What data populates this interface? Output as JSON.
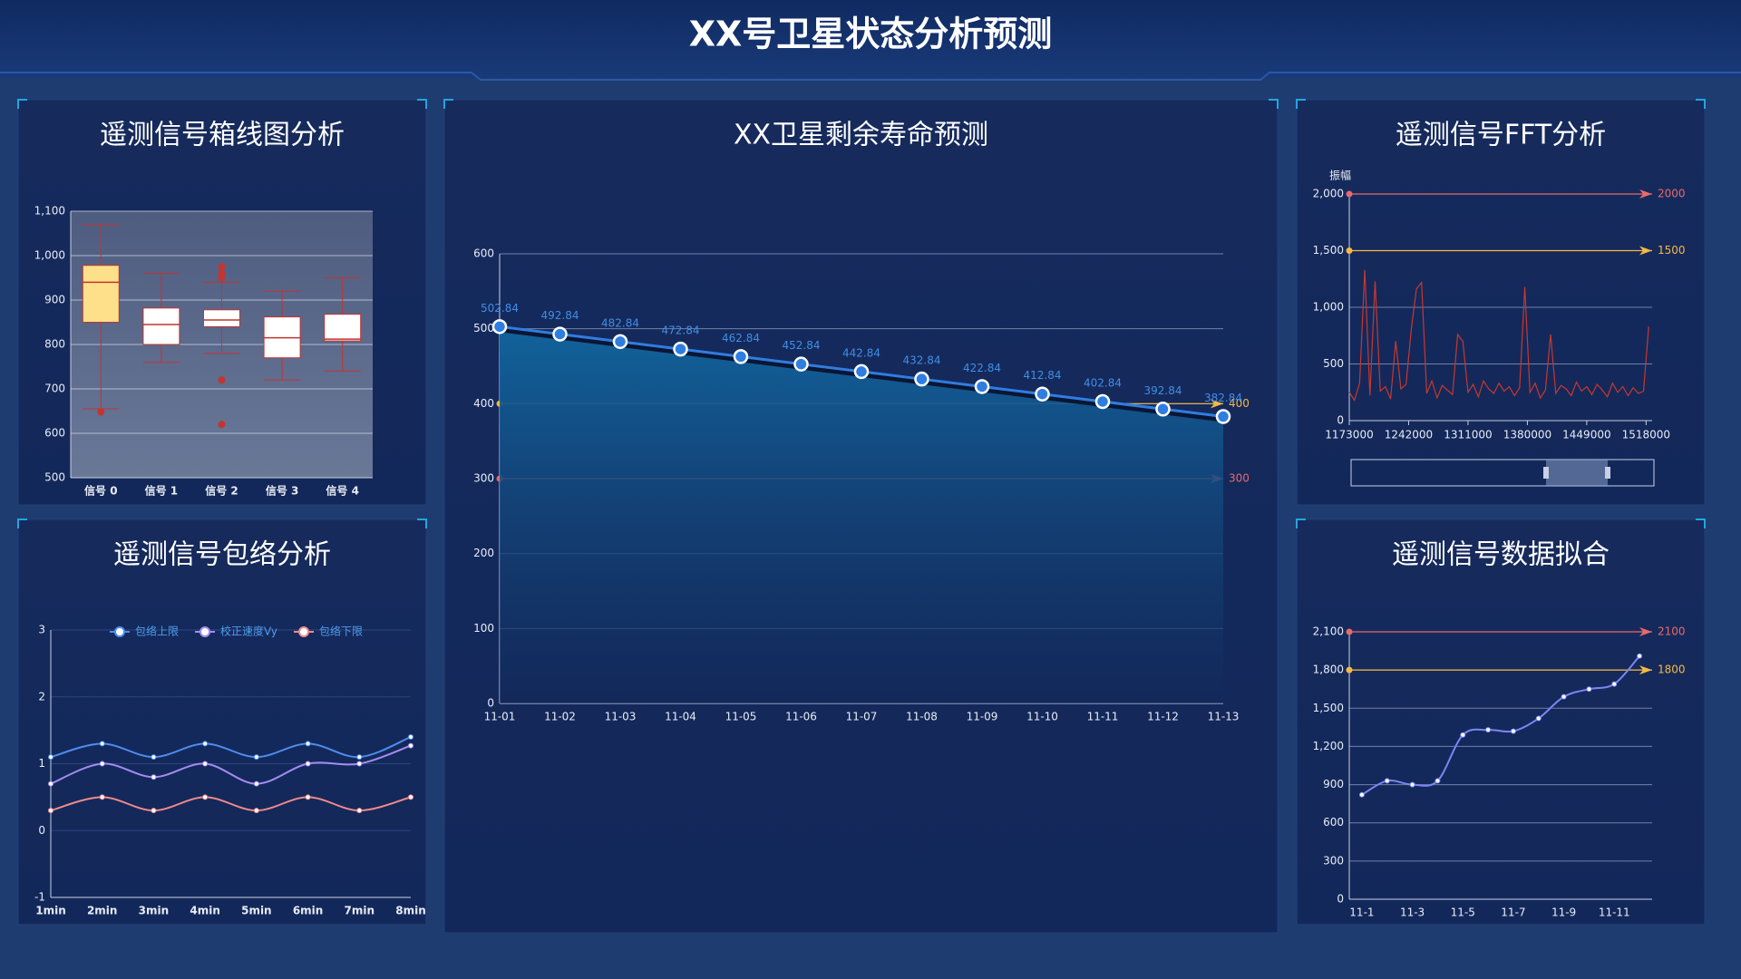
{
  "title": "XX号卫星状态分析预测",
  "chart_data": [
    {
      "type": "boxplot",
      "title": "遥测信号箱线图分析",
      "categories": [
        "信号 0",
        "信号 1",
        "信号 2",
        "信号 3",
        "信号 4"
      ],
      "values": [
        [
          655,
          850,
          940,
          978,
          1070
        ],
        [
          760,
          800,
          845,
          882,
          960
        ],
        [
          780,
          840,
          855,
          878,
          940
        ],
        [
          720,
          770,
          815,
          862,
          920
        ],
        [
          740,
          808,
          812,
          868,
          950
        ]
      ],
      "outliers": [
        [
          648
        ],
        [],
        [
          975,
          960,
          950,
          720,
          620
        ],
        [],
        []
      ],
      "box_colors": [
        "#ffe08a",
        "#ffffff",
        "#ffffff",
        "#ffffff",
        "#ffffff"
      ],
      "color": "#c23531",
      "ylim": [
        500,
        1100
      ],
      "yticks": [
        500,
        600,
        700,
        800,
        900,
        {
          "value": 1000,
          "label": "1,000"
        },
        {
          "value": 1100,
          "label": "1,100"
        }
      ],
      "grid": true
    },
    {
      "type": "line",
      "title": "遥测信号包络分析",
      "categories": [
        "1min",
        "2min",
        "3min",
        "4min",
        "5min",
        "6min",
        "7min",
        "8min"
      ],
      "series": [
        {
          "name": "包络上限",
          "color": "#4d8ef0",
          "values": [
            1.1,
            1.3,
            1.1,
            1.3,
            1.1,
            1.3,
            1.1,
            1.4
          ]
        },
        {
          "name": "校正速度Vy",
          "color": "#a48cf0",
          "values": [
            0.7,
            1.0,
            0.8,
            1.0,
            0.7,
            1.0,
            1.0,
            1.27
          ]
        },
        {
          "name": "包络下限",
          "color": "#f08a8a",
          "values": [
            0.3,
            0.5,
            0.3,
            0.5,
            0.3,
            0.5,
            0.3,
            0.5
          ]
        }
      ],
      "ylim": [
        -1,
        3
      ],
      "yticks": [
        -1,
        0,
        1,
        2,
        3
      ],
      "smooth": true,
      "legend": "top"
    },
    {
      "type": "area",
      "title": "XX卫星剩余寿命预测",
      "categories": [
        "11-01",
        "11-02",
        "11-03",
        "11-04",
        "11-05",
        "11-06",
        "11-07",
        "11-08",
        "11-09",
        "11-10",
        "11-11",
        "11-12",
        "11-13"
      ],
      "values": [
        502.84,
        492.84,
        482.84,
        472.84,
        462.84,
        452.84,
        442.84,
        432.84,
        422.84,
        412.84,
        402.84,
        392.84,
        382.84
      ],
      "color": "#2f7de1",
      "ylim": [
        0,
        600
      ],
      "yticks": [
        0,
        100,
        200,
        300,
        400,
        500,
        600
      ],
      "grid": true,
      "mark_lines": [
        {
          "value": 400,
          "color": "#f5b942"
        },
        {
          "value": 300,
          "color": "#e86a6a"
        }
      ]
    },
    {
      "type": "line",
      "title": "遥测信号FFT分析",
      "y_axis_label": "振幅",
      "x": [
        1173000,
        1179000,
        1185000,
        1191000,
        1197000,
        1203000,
        1209000,
        1215000,
        1221000,
        1227000,
        1233000,
        1239000,
        1245000,
        1251000,
        1257000,
        1263000,
        1269000,
        1275000,
        1281000,
        1287000,
        1293000,
        1299000,
        1305000,
        1311000,
        1317000,
        1323000,
        1329000,
        1335000,
        1341000,
        1347000,
        1353000,
        1359000,
        1365000,
        1371000,
        1377000,
        1383000,
        1389000,
        1395000,
        1401000,
        1407000,
        1413000,
        1419000,
        1425000,
        1431000,
        1437000,
        1443000,
        1449000,
        1455000,
        1461000,
        1467000,
        1473000,
        1479000,
        1485000,
        1491000,
        1497000,
        1503000,
        1509000,
        1515000,
        1521000
      ],
      "values": [
        250,
        180,
        330,
        1330,
        220,
        1230,
        260,
        300,
        190,
        700,
        280,
        320,
        800,
        1160,
        1220,
        240,
        350,
        200,
        310,
        270,
        230,
        760,
        700,
        250,
        320,
        210,
        350,
        280,
        240,
        330,
        260,
        300,
        220,
        290,
        1180,
        250,
        330,
        200,
        270,
        760,
        240,
        310,
        280,
        220,
        340,
        260,
        300,
        230,
        320,
        270,
        210,
        330,
        250,
        300,
        220,
        290,
        240,
        260,
        830
      ],
      "color": "#c8372f",
      "xlim": [
        1173000,
        1525000
      ],
      "xticks": [
        1173000,
        1242000,
        1311000,
        1380000,
        1449000,
        1518000
      ],
      "ylim": [
        0,
        2000
      ],
      "yticks": [
        0,
        500,
        {
          "value": 1000,
          "label": "1,000"
        },
        {
          "value": 1500,
          "label": "1,500"
        },
        {
          "value": 2000,
          "label": "2,000"
        }
      ],
      "grid": true,
      "mark_lines": [
        {
          "value": 2000,
          "color": "#e86a6a"
        },
        {
          "value": 1500,
          "color": "#f5b942"
        }
      ]
    },
    {
      "type": "line",
      "title": "遥测信号数据拟合",
      "categories": [
        "11-1",
        null,
        "11-3",
        null,
        "11-5",
        null,
        "11-7",
        null,
        "11-9",
        null,
        "11-11",
        null
      ],
      "values": [
        820,
        930,
        900,
        930,
        1290,
        1330,
        1320,
        1420,
        1590,
        1650,
        1690,
        1910
      ],
      "color": "#7b86f5",
      "smooth": true,
      "ylim": [
        0,
        2100
      ],
      "yticks": [
        0,
        300,
        600,
        900,
        {
          "value": 1200,
          "label": "1,200"
        },
        {
          "value": 1500,
          "label": "1,500"
        },
        {
          "value": 1800,
          "label": "1,800"
        },
        {
          "value": 2100,
          "label": "2,100"
        }
      ],
      "grid": true,
      "mark_lines": [
        {
          "value": 2100,
          "color": "#e86a6a"
        },
        {
          "value": 1800,
          "color": "#f5b942"
        }
      ]
    }
  ]
}
